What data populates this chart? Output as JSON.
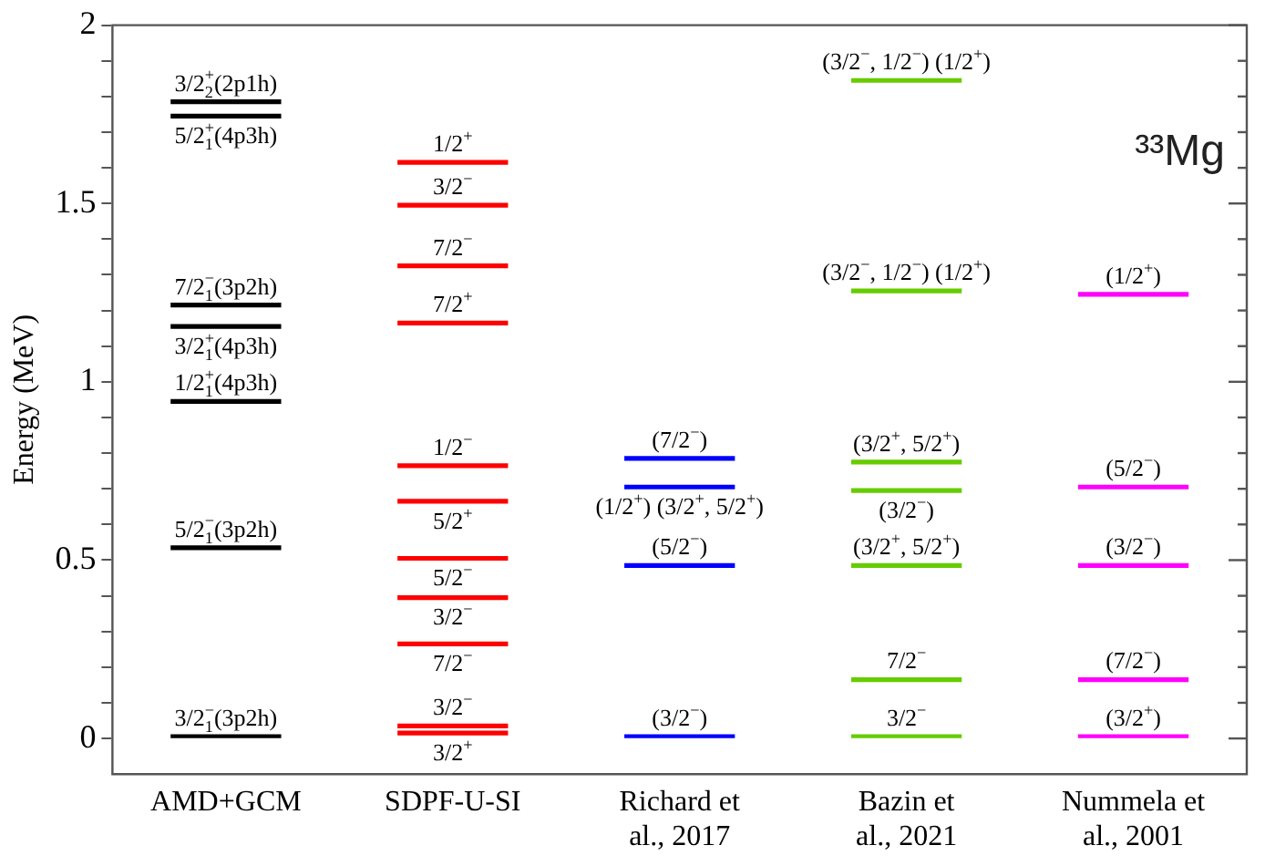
{
  "chart_data": {
    "type": "bar",
    "ylabel": "Energy (MeV)",
    "categories": [
      "AMD+GCM",
      "SDPF-U-SI",
      "Richard et al., 2017",
      "Bazin et al., 2021",
      "Nummela et al., 2001"
    ],
    "ylim": [
      -0.1,
      2
    ],
    "yticks": [
      0,
      {
        "value": 0.1,
        "label": null
      },
      {
        "value": 0.2,
        "label": null
      },
      {
        "value": 0.3,
        "label": null
      },
      {
        "value": 0.4,
        "label": null
      },
      0.5,
      {
        "value": 0.6,
        "label": null
      },
      {
        "value": 0.7,
        "label": null
      },
      {
        "value": 0.8,
        "label": null
      },
      {
        "value": 0.9,
        "label": null
      },
      1,
      {
        "value": 1.1,
        "label": null
      },
      {
        "value": 1.2,
        "label": null
      },
      {
        "value": 1.3,
        "label": null
      },
      {
        "value": 1.4,
        "label": null
      },
      1.5,
      {
        "value": 1.6,
        "label": null
      },
      {
        "value": 1.7,
        "label": null
      },
      {
        "value": 1.8,
        "label": null
      },
      {
        "value": 1.9,
        "label": null
      },
      2
    ],
    "grid": false,
    "legend": false,
    "annotations": [
      "³³Mg"
    ],
    "series": [
      {
        "color": "#000000",
        "x": [
          "AMD+GCM",
          "AMD+GCM",
          "AMD+GCM",
          "AMD+GCM",
          "AMD+GCM",
          "AMD+GCM",
          "AMD+GCM"
        ],
        "base": [
          1.78,
          1.74,
          1.21,
          1.15,
          0.94,
          0.53,
          0.0
        ],
        "values": [
          0.01,
          0.01,
          0.01,
          0.01,
          0.01,
          0.01,
          0.01
        ],
        "value_labels": [
          "3/2$^{+}$$_{2}$(2p1h)",
          "5/2$^{+}$$_{1}$(4p3h)",
          "7/2$^{−}$$_{1}$(3p2h)",
          "3/2$^{+}$$_{1}$(4p3h)",
          "1/2$^{+}$$_{1}$(4p3h)",
          "5/2$^{−}$$_{1}$(3p2h)",
          "3/2$^{−}$$_{1}$(3p2h)"
        ]
      },
      {
        "color": "#ff0000",
        "x": [
          "SDPF-U-SI",
          "SDPF-U-SI",
          "SDPF-U-SI",
          "SDPF-U-SI",
          "SDPF-U-SI",
          "SDPF-U-SI",
          "SDPF-U-SI",
          "SDPF-U-SI",
          "SDPF-U-SI",
          "SDPF-U-SI",
          "SDPF-U-SI"
        ],
        "base": [
          1.61,
          1.49,
          1.32,
          1.16,
          0.76,
          0.66,
          0.5,
          0.39,
          0.26,
          0.03,
          0.01
        ],
        "values": [
          0.01,
          0.01,
          0.01,
          0.01,
          0.01,
          0.01,
          0.01,
          0.01,
          0.01,
          0.01,
          0.01
        ],
        "value_labels": [
          "1/2$^{+}$",
          "3/2$^{−}$",
          "7/2$^{−}$",
          "7/2$^{+}$",
          "1/2$^{−}$",
          "5/2$^{+}$",
          "5/2$^{−}$",
          "3/2$^{−}$",
          "7/2$^{−}$",
          "3/2$^{−}$",
          "3/2$^{+}$"
        ]
      },
      {
        "color": "#0000ff",
        "x": [
          "Richard et al., 2017",
          "Richard et al., 2017",
          "Richard et al., 2017",
          "Richard et al., 2017"
        ],
        "base": [
          0.78,
          0.7,
          0.48,
          0.0
        ],
        "values": [
          0.01,
          0.01,
          0.01,
          0.01
        ],
        "value_labels": [
          "(7/2$^{−}$)",
          "(1/2$^{+}$) (3/2$^{+}$, 5/2$^{+}$)",
          "(5/2$^{−}$)",
          "(3/2$^{−}$)"
        ]
      },
      {
        "color": "#66cc00",
        "x": [
          "Bazin et al., 2021",
          "Bazin et al., 2021",
          "Bazin et al., 2021",
          "Bazin et al., 2021",
          "Bazin et al., 2021",
          "Bazin et al., 2021",
          "Bazin et al., 2021"
        ],
        "base": [
          1.84,
          1.25,
          0.77,
          0.69,
          0.48,
          0.16,
          0.0
        ],
        "values": [
          0.01,
          0.01,
          0.01,
          0.01,
          0.01,
          0.01,
          0.01
        ],
        "value_labels": [
          "(3/2$^{−}$, 1/2$^{−}$) (1/2$^{+}$)",
          "(3/2$^{−}$, 1/2$^{−}$) (1/2$^{+}$)",
          "(3/2$^{+}$, 5/2$^{+}$)",
          "(3/2$^{−}$)",
          "(3/2$^{+}$, 5/2$^{+}$)",
          "7/2$^{−}$",
          "3/2$^{−}$"
        ]
      },
      {
        "color": "#ff00ff",
        "x": [
          "Nummela et al., 2001",
          "Nummela et al., 2001",
          "Nummela et al., 2001",
          "Nummela et al., 2001",
          "Nummela et al., 2001"
        ],
        "base": [
          1.24,
          0.7,
          0.48,
          0.16,
          0.0
        ],
        "values": [
          0.01,
          0.01,
          0.01,
          0.01,
          0.01
        ],
        "value_labels": [
          "(1/2$^{+}$)",
          "(5/2$^{−}$)",
          "(3/2$^{−}$)",
          "(7/2$^{−}$)",
          "(3/2$^{+}$)"
        ]
      }
    ]
  }
}
